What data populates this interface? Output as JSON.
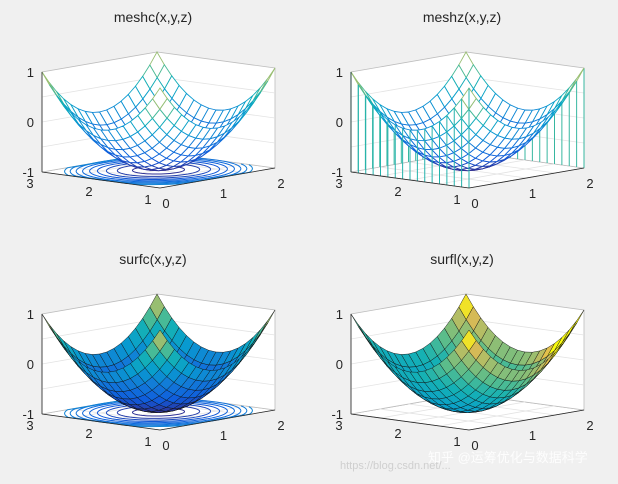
{
  "figure": {
    "watermark": "知乎 @运筹优化与数据科学",
    "watermark_url": "https://blog.csdn.net/...",
    "colors": {
      "background": "#f0f0f0",
      "axes": "#ffffff",
      "grid": "#e3e3e3",
      "edge": "#262626"
    }
  },
  "chart_data": [
    {
      "type": "surface",
      "title": "meshc(x,y,z)",
      "function": "z = (x-1)^2 + (y-2)^2 - 1",
      "x": {
        "min": 0,
        "max": 2,
        "ticks": [
          "0",
          "1",
          "2"
        ]
      },
      "y": {
        "min": 1,
        "max": 3,
        "ticks": [
          "1",
          "2",
          "3"
        ]
      },
      "z": {
        "min": -1,
        "max": 1,
        "ticks": [
          "-1",
          "0",
          "1"
        ]
      },
      "mesh": true,
      "filled": false,
      "contour_below": true,
      "stems": false,
      "colormap": "parula"
    },
    {
      "type": "surface",
      "title": "meshz(x,y,z)",
      "function": "z = (x-1)^2 + (y-2)^2 - 1",
      "x": {
        "min": 0,
        "max": 2,
        "ticks": [
          "0",
          "1",
          "2"
        ]
      },
      "y": {
        "min": 1,
        "max": 3,
        "ticks": [
          "1",
          "2",
          "3"
        ]
      },
      "z": {
        "min": -1,
        "max": 1,
        "ticks": [
          "-1",
          "0",
          "1"
        ]
      },
      "mesh": true,
      "filled": false,
      "contour_below": false,
      "stems": true,
      "colormap": "parula"
    },
    {
      "type": "surface",
      "title": "surfc(x,y,z)",
      "function": "z = (x-1)^2 + (y-2)^2 - 1",
      "x": {
        "min": 0,
        "max": 2,
        "ticks": [
          "0",
          "1",
          "2"
        ]
      },
      "y": {
        "min": 1,
        "max": 3,
        "ticks": [
          "1",
          "2",
          "3"
        ]
      },
      "z": {
        "min": -1,
        "max": 1,
        "ticks": [
          "-1",
          "0",
          "1"
        ]
      },
      "mesh": false,
      "filled": true,
      "contour_below": true,
      "stems": false,
      "colormap": "parula"
    },
    {
      "type": "surface",
      "title": "surfl(x,y,z)",
      "function": "z = (x-1)^2 + (y-2)^2 - 1",
      "x": {
        "min": 0,
        "max": 2,
        "ticks": [
          "0",
          "1",
          "2"
        ]
      },
      "y": {
        "min": 1,
        "max": 3,
        "ticks": [
          "1",
          "2",
          "3"
        ]
      },
      "z": {
        "min": -1,
        "max": 1,
        "ticks": [
          "-1",
          "0",
          "1"
        ]
      },
      "mesh": false,
      "filled": true,
      "contour_below": false,
      "stems": false,
      "lit": true,
      "colormap": "parula"
    }
  ]
}
